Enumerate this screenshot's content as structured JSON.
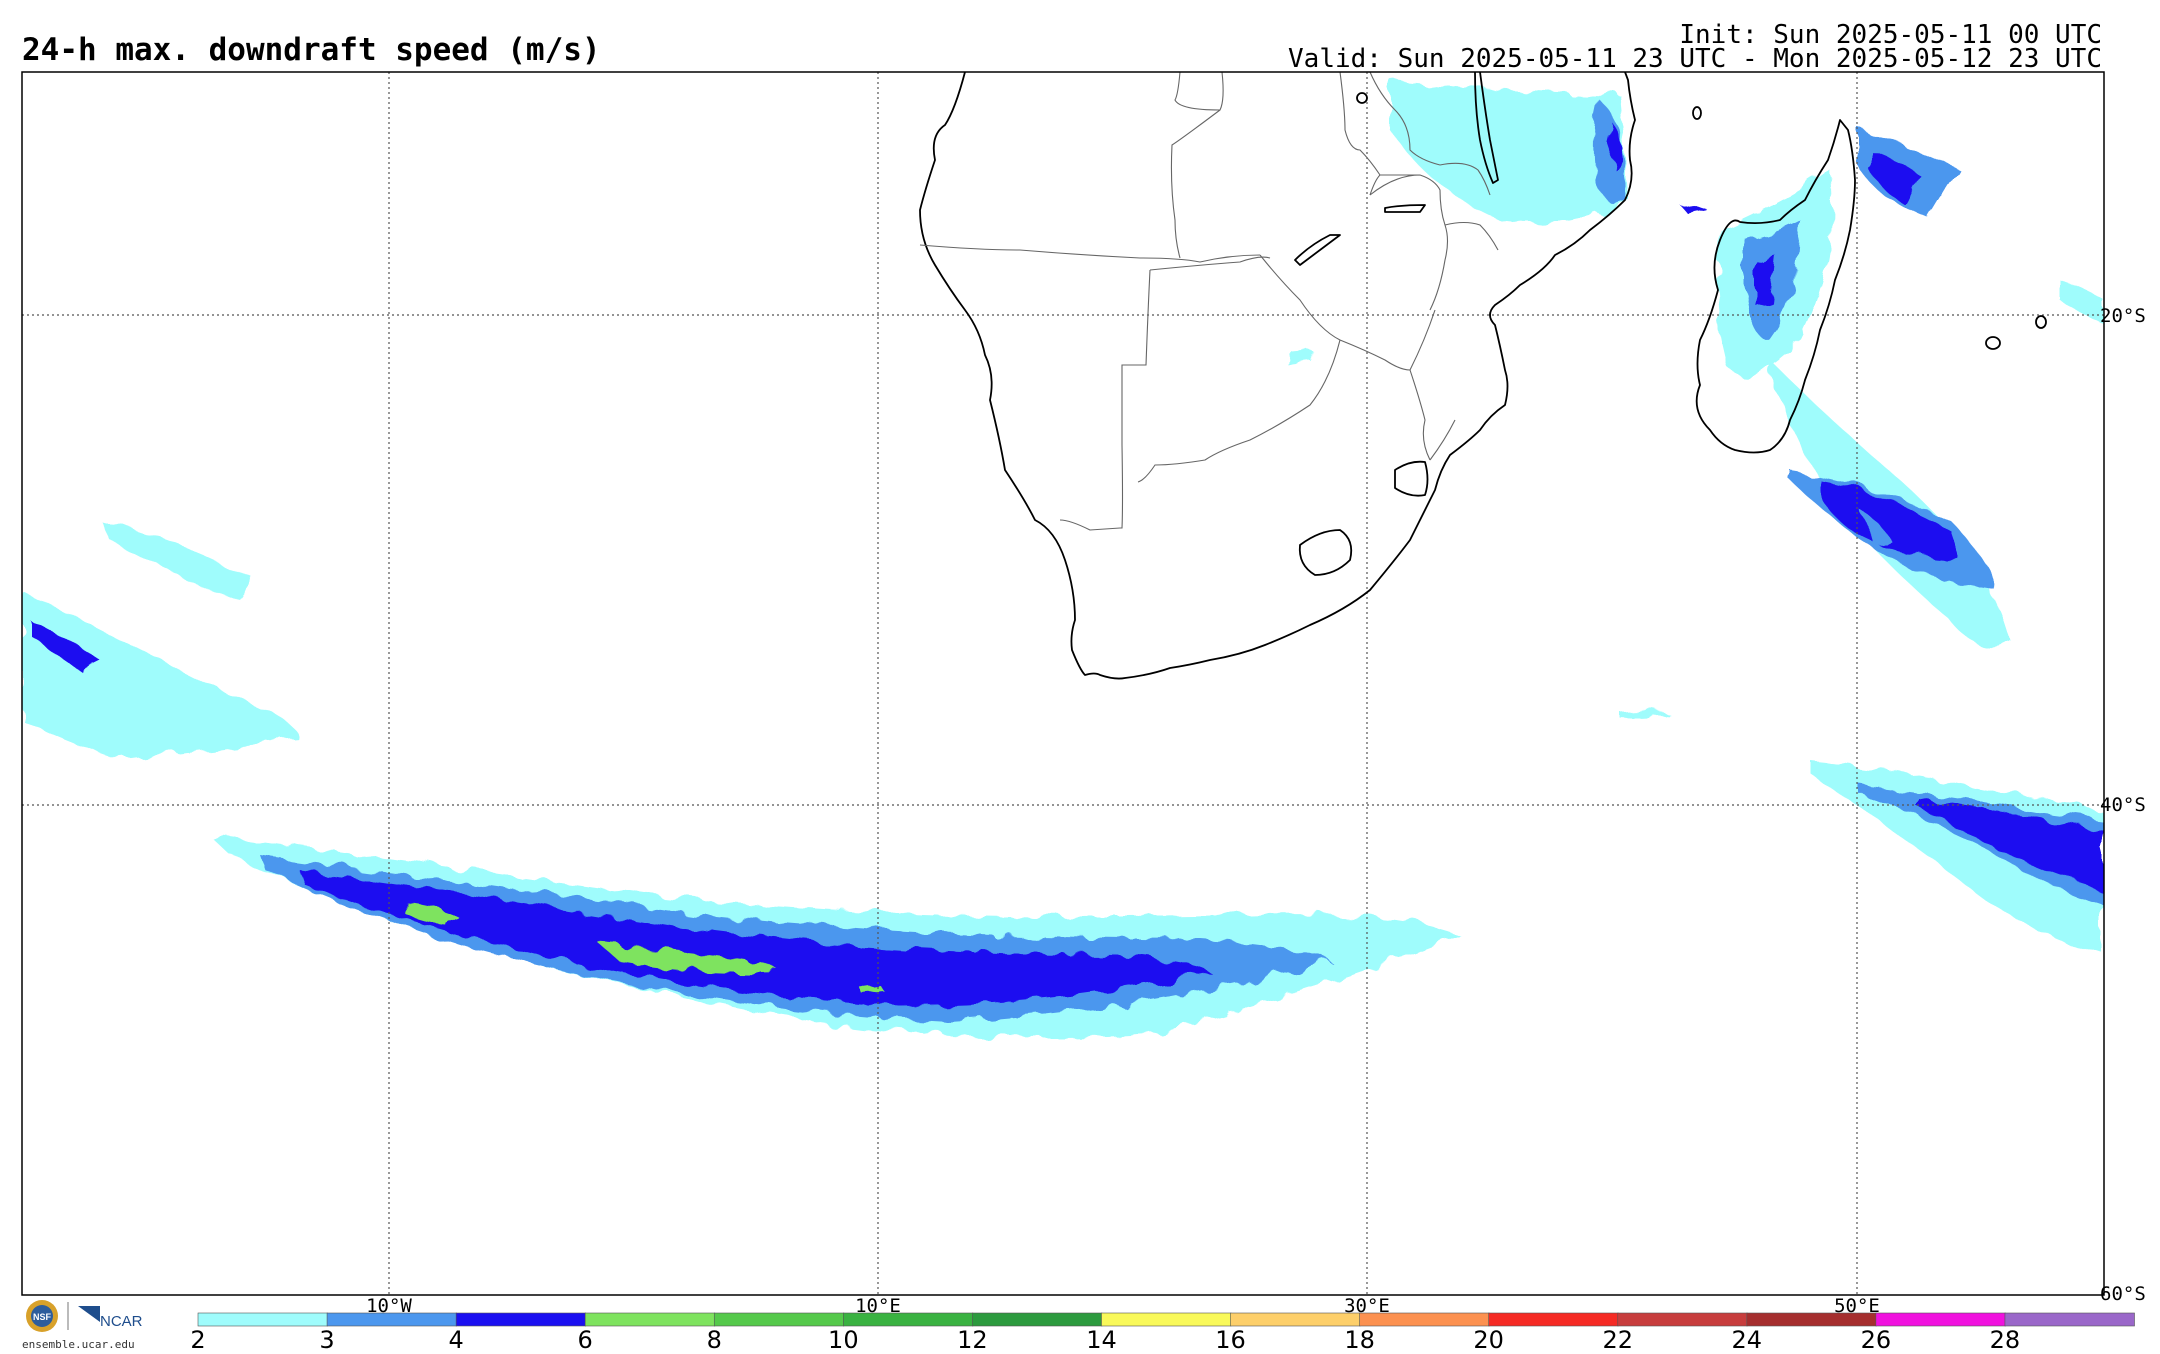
{
  "header": {
    "title": "24-h max. downdraft speed (m/s)",
    "init": "Init: Sun 2025-05-11 00 UTC",
    "valid": "Valid: Sun 2025-05-11 23 UTC - Mon 2025-05-12 23 UTC"
  },
  "map": {
    "lon_labels": [
      "10°W",
      "10°E",
      "30°E",
      "50°E"
    ],
    "lat_labels": [
      "20°S",
      "40°S",
      "60°S"
    ],
    "grid": "dotted",
    "coastline_color": "#000000",
    "border_color": "#555555"
  },
  "colorbar": {
    "ticks": [
      "2",
      "3",
      "4",
      "6",
      "8",
      "10",
      "12",
      "14",
      "16",
      "18",
      "20",
      "22",
      "24",
      "26",
      "28"
    ],
    "colors": [
      "#9ffcfc",
      "#4c97ee",
      "#1a0ff0",
      "#7ee35e",
      "#55c94b",
      "#3ab241",
      "#2c9a3e",
      "#f9f95a",
      "#fdcf6a",
      "#fc9150",
      "#f52a24",
      "#c73d3d",
      "#a52e2e",
      "#f011de",
      "#9a67c9"
    ]
  },
  "logos": {
    "nsf": "NSF",
    "ncar": "NCAR",
    "url": "ensemble.ucar.edu"
  }
}
